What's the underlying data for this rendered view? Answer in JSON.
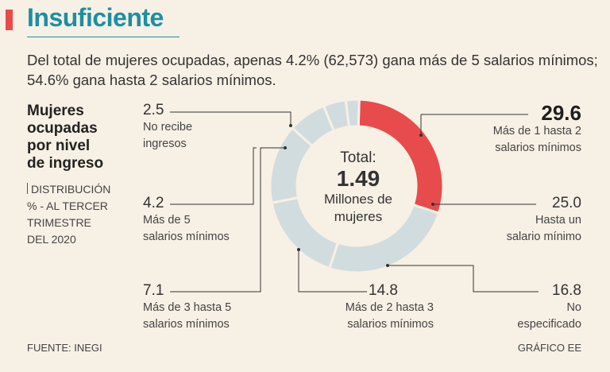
{
  "header": {
    "title": "Insuficiente",
    "subtitle": "Del total de mujeres ocupadas, apenas 4.2% (62,573) gana más de 5 salarios mínimos; 54.6% gana hasta 2 salarios mínimos."
  },
  "side": {
    "title_lines": [
      "Mujeres",
      "ocupadas",
      "por nivel",
      "de ingreso"
    ],
    "sub_lines": [
      "DISTRIBUCIÓN",
      "% - AL TERCER",
      "TRIMESTRE",
      "DEL 2020"
    ]
  },
  "center": {
    "line1": "Total:",
    "line2": "1.49",
    "line3": "Millones de",
    "line4": "mujeres"
  },
  "footer": {
    "source": "FUENTE: INEGI",
    "credit": "GRÁFICO EE"
  },
  "labels": {
    "mas1_2": {
      "value": "29.6",
      "text": [
        "Más de 1 hasta 2",
        "salarios mínimos"
      ]
    },
    "hasta1": {
      "value": "25.0",
      "text": [
        "Hasta un",
        "salario mínimo"
      ]
    },
    "noesp": {
      "value": "16.8",
      "text": [
        "No",
        "especificado"
      ]
    },
    "mas2_3": {
      "value": "14.8",
      "text": [
        "Más de 2 hasta 3",
        "salarios mínimos"
      ]
    },
    "mas3_5": {
      "value": "7.1",
      "text": [
        "Más de 3 hasta 5",
        "salarios mínimos"
      ]
    },
    "mas5": {
      "value": "4.2",
      "text": [
        "Más de 5",
        "salarios mínimos"
      ]
    },
    "norecibe": {
      "value": "2.5",
      "text": [
        "No recibe",
        "ingresos"
      ]
    }
  },
  "colors": {
    "highlight": "#e84b4b",
    "segment": "#d1dcdf",
    "title": "#1c8fa3",
    "background": "#f7f0e4"
  },
  "chart_data": {
    "type": "pie",
    "title": "Mujeres ocupadas por nivel de ingreso",
    "subtitle": "DISTRIBUCIÓN % - AL TERCER TRIMESTRE DEL 2020",
    "unit": "%",
    "total": "1.49 Millones de mujeres",
    "slices": [
      {
        "label": "Más de 1 hasta 2 salarios mínimos",
        "value": 29.6,
        "highlight": true
      },
      {
        "label": "Hasta un salario mínimo",
        "value": 25.0
      },
      {
        "label": "No especificado",
        "value": 16.8
      },
      {
        "label": "Más de 2 hasta 3 salarios mínimos",
        "value": 14.8
      },
      {
        "label": "Más de 3 hasta 5 salarios mínimos",
        "value": 7.1
      },
      {
        "label": "Más de 5 salarios mínimos",
        "value": 4.2
      },
      {
        "label": "No recibe ingresos",
        "value": 2.5
      }
    ]
  }
}
